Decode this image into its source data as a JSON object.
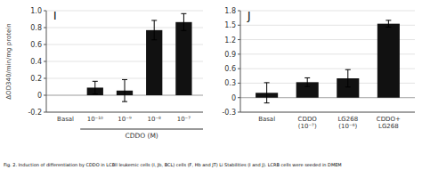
{
  "chart_data": [
    {
      "type": "bar",
      "title": "I",
      "categories": [
        "Basal",
        "10⁻¹⁰",
        "10⁻⁹",
        "10⁻⁸",
        "10⁻⁷"
      ],
      "values": [
        0.0,
        0.09,
        0.055,
        0.77,
        0.865
      ],
      "errors": [
        0.0,
        0.075,
        0.13,
        0.115,
        0.1
      ],
      "color": "#111111",
      "ylabel": "ΔOD340/min/mg protein",
      "xlabel": "CDDO (M)",
      "ylim": [
        -0.2,
        1.0
      ],
      "yticks": [
        -0.2,
        0,
        0.2,
        0.4,
        0.6,
        0.8,
        {
          "value": 1.0,
          "label": "1.0"
        }
      ],
      "annotations": [
        "Fig. 2. Induction of differentiation by CDDO in LCBll leukemic cells (I, Jb, BCL) cells (F, Hb and JT) Li Stabilities (I and J). LCRB cells were seeded in DMEM"
      ]
    },
    {
      "type": "bar",
      "title": "J",
      "categories": [
        "Basal",
        "CDDO\n(10⁻⁷)",
        "LG268\n(10⁻⁶)",
        "CDDO+\nLG268"
      ],
      "values": [
        0.1,
        0.32,
        0.4,
        1.53
      ],
      "errors": [
        0.21,
        0.09,
        0.18,
        0.07
      ],
      "color": "#111111",
      "ylim": [
        -0.3,
        1.8
      ],
      "yticks": [
        -0.3,
        0,
        0.3,
        0.6,
        0.9,
        1.2,
        1.5,
        1.8
      ]
    }
  ]
}
